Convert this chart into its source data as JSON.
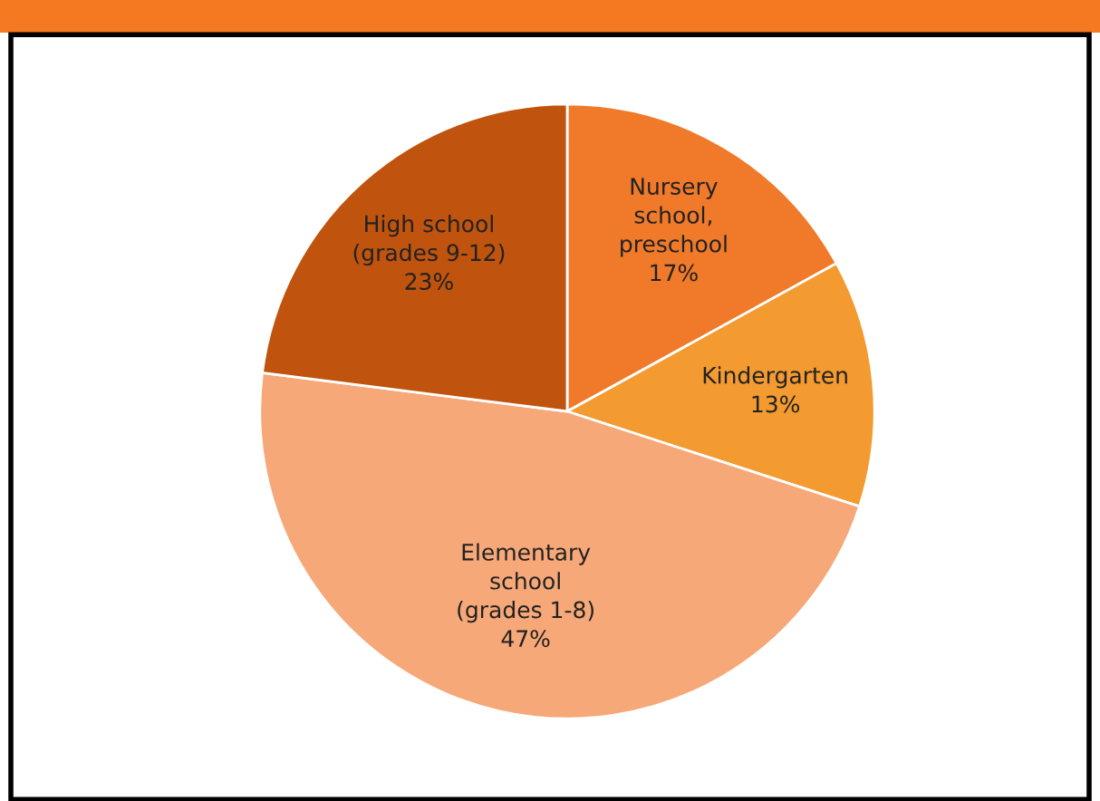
{
  "chart_data": {
    "type": "pie",
    "categories": [
      "Nursery\nschool,\npreschool",
      "Kindergarten",
      "Elementary\nschool\n(grades 1-8)",
      "High school\n(grades 9-12)"
    ],
    "values": [
      17,
      13,
      47,
      23
    ],
    "value_labels": [
      "17%",
      "13%",
      "47%",
      "23%"
    ],
    "colors": [
      "#f07a2a",
      "#f39a30",
      "#f7a878",
      "#c0530e"
    ],
    "legend": false
  }
}
